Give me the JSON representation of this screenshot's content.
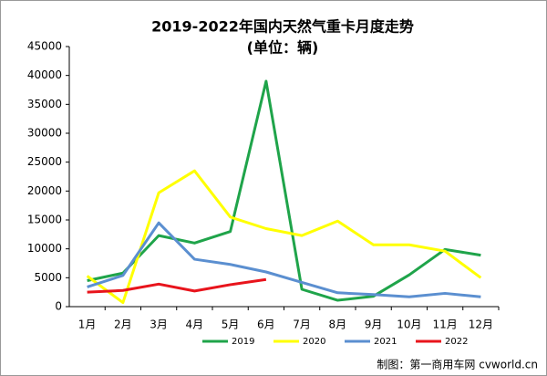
{
  "chart_data": {
    "type": "line",
    "title": "2019-2022年国内天然气重卡月度走势",
    "subtitle": "(单位：辆)",
    "source": "制图：第一商用车网 cvworld.cn",
    "categories": [
      "1月",
      "2月",
      "3月",
      "4月",
      "5月",
      "6月",
      "7月",
      "8月",
      "9月",
      "10月",
      "11月",
      "12月"
    ],
    "series": [
      {
        "name": "2019",
        "color": "#1fa44a",
        "values": [
          4500,
          5800,
          12300,
          11000,
          13000,
          39000,
          3000,
          1100,
          1800,
          5500,
          9900,
          8900
        ]
      },
      {
        "name": "2020",
        "color": "#ffff00",
        "values": [
          5300,
          700,
          19700,
          23500,
          15500,
          13500,
          12300,
          14800,
          10700,
          10700,
          9600,
          5000
        ]
      },
      {
        "name": "2021",
        "color": "#5b8fd0",
        "values": [
          3400,
          5400,
          14500,
          8200,
          7300,
          6000,
          4200,
          2400,
          2100,
          1700,
          2300,
          1700
        ]
      },
      {
        "name": "2022",
        "color": "#e8141c",
        "values": [
          2500,
          2800,
          3900,
          2700,
          3800,
          4700,
          null,
          null,
          null,
          null,
          null,
          null
        ]
      }
    ],
    "ylim": [
      0,
      45000
    ],
    "yticks": [
      0,
      5000,
      10000,
      15000,
      20000,
      25000,
      30000,
      35000,
      40000,
      45000
    ],
    "grid": false,
    "legend": "bottom"
  }
}
